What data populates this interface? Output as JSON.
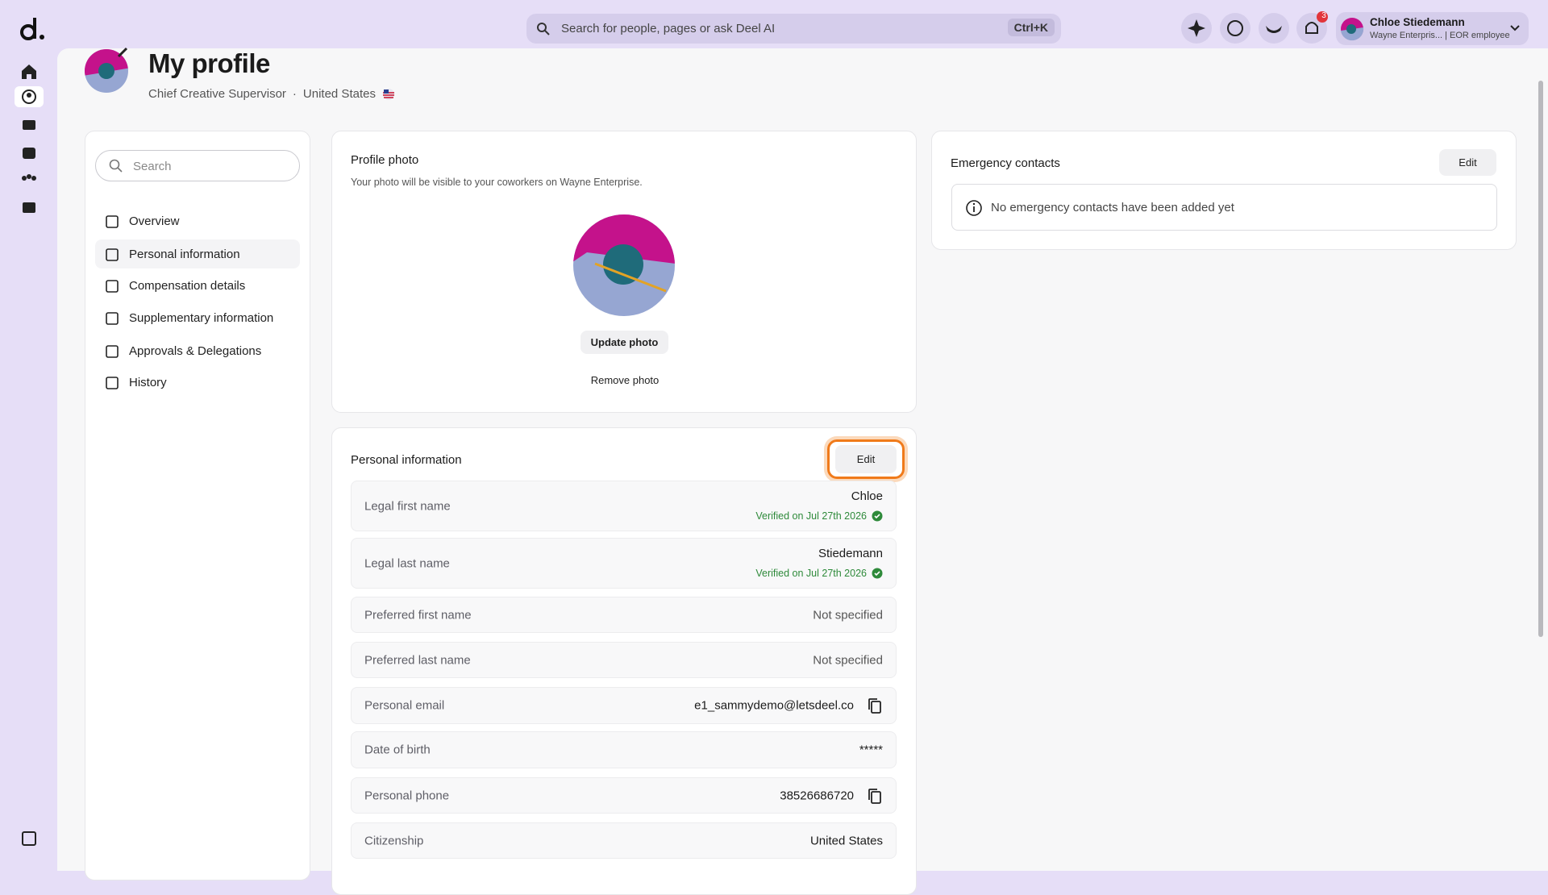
{
  "header": {
    "search_placeholder": "Search for people, pages or ask Deel AI",
    "shortcut": "Ctrl+K",
    "notification_count": "3",
    "user_name": "Chloe Stiedemann",
    "user_subtitle": "Wayne Enterpris... | EOR employee"
  },
  "profile": {
    "title": "My profile",
    "job_title": "Chief Creative Supervisor",
    "country": "United States"
  },
  "nav": {
    "search_placeholder": "Search",
    "items": [
      "Overview",
      "Personal information",
      "Compensation details",
      "Supplementary information",
      "Approvals & Delegations",
      "History"
    ]
  },
  "photo_card": {
    "title": "Profile photo",
    "description": "Your photo will be visible to your coworkers on Wayne Enterprise.",
    "update_button": "Update photo",
    "remove_button": "Remove photo"
  },
  "emergency_card": {
    "title": "Emergency contacts",
    "edit_button": "Edit",
    "empty_message": "No emergency contacts have been added yet"
  },
  "personal_card": {
    "title": "Personal information",
    "edit_button": "Edit",
    "rows": [
      {
        "label": "Legal first name",
        "value": "Chloe",
        "verified": "Verified on Jul 27th 2026"
      },
      {
        "label": "Legal last name",
        "value": "Stiedemann",
        "verified": "Verified on Jul 27th 2026"
      },
      {
        "label": "Preferred first name",
        "value": "Not specified"
      },
      {
        "label": "Preferred last name",
        "value": "Not specified"
      },
      {
        "label": "Personal email",
        "value": "e1_sammydemo@letsdeel.co",
        "copy": true
      },
      {
        "label": "Date of birth",
        "value": "*****"
      },
      {
        "label": "Personal phone",
        "value": "38526686720",
        "copy": true
      },
      {
        "label": "Citizenship",
        "value": "United States"
      }
    ]
  }
}
